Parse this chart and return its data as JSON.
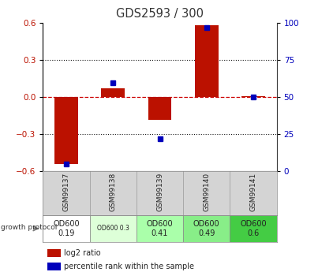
{
  "title": "GDS2593 / 300",
  "samples": [
    "GSM99137",
    "GSM99138",
    "GSM99139",
    "GSM99140",
    "GSM99141"
  ],
  "log2_ratio": [
    -0.54,
    0.07,
    -0.18,
    0.58,
    0.01
  ],
  "percentile_rank": [
    5,
    60,
    22,
    97,
    50
  ],
  "ylim_left": [
    -0.6,
    0.6
  ],
  "ylim_right": [
    0,
    100
  ],
  "yticks_left": [
    -0.6,
    -0.3,
    0.0,
    0.3,
    0.6
  ],
  "yticks_right": [
    0,
    25,
    50,
    75,
    100
  ],
  "bar_color": "#bb1100",
  "dot_color": "#0000bb",
  "zero_line_color": "#cc0000",
  "grid_color": "#111111",
  "protocol_labels": [
    "OD600\n0.19",
    "OD600 0.3",
    "OD600\n0.41",
    "OD600\n0.49",
    "OD600\n0.6"
  ],
  "protocol_colors": [
    "#ffffff",
    "#ddffd8",
    "#aaffaa",
    "#88ee88",
    "#44cc44"
  ],
  "sample_bg": "#d4d4d4",
  "plot_bg": "#ffffff"
}
